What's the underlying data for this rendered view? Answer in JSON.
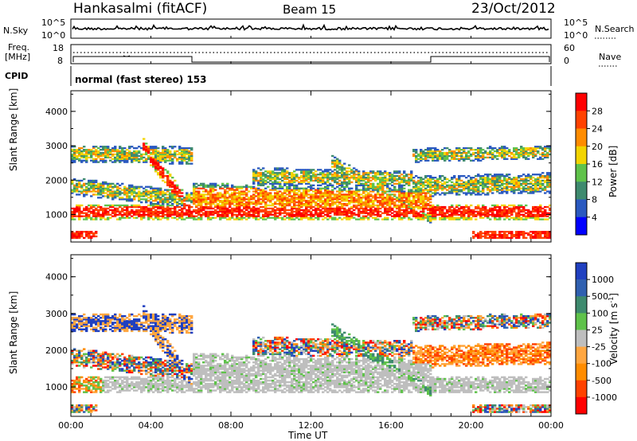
{
  "header": {
    "station": "Hankasalmi (fitACF)",
    "beam": "Beam 15",
    "date": "23/Oct/2012"
  },
  "panels": {
    "nsky_label": "N.Sky",
    "nsearch_label": "N.Search",
    "nsky_ticks": [
      "10^5",
      "10^0"
    ],
    "freq_label_1": "Freq.",
    "freq_label_2": "[MHz]",
    "freq_ticks": [
      "18",
      "8"
    ],
    "nave_label": "Nave",
    "nave_ticks": [
      "60",
      "0"
    ],
    "cpid_label": "CPID",
    "cpid_text": "normal (fast stereo) 153"
  },
  "chart_data": [
    {
      "type": "heatmap",
      "title": "",
      "xlabel": "Time UT",
      "ylabel": "Slant Range [km]",
      "x_ticks": [
        "00:00",
        "04:00",
        "08:00",
        "12:00",
        "16:00",
        "20:00",
        "00:00"
      ],
      "y_ticks": [
        "1000",
        "2000",
        "3000",
        "4000"
      ],
      "ylim": [
        200,
        4600
      ],
      "colorbar": {
        "label": "Power [dB]",
        "ticks": [
          "4",
          "8",
          "12",
          "16",
          "20",
          "24",
          "28"
        ],
        "colors": [
          "#0000ff",
          "#2a59c0",
          "#3e8a6e",
          "#5fc24a",
          "#f2d400",
          "#ff8c00",
          "#ff4200",
          "#ff0000"
        ]
      }
    },
    {
      "type": "heatmap",
      "title": "",
      "xlabel": "Time UT",
      "ylabel": "Slant Range [km]",
      "x_ticks": [
        "00:00",
        "04:00",
        "08:00",
        "12:00",
        "16:00",
        "20:00",
        "00:00"
      ],
      "y_ticks": [
        "1000",
        "2000",
        "3000",
        "4000"
      ],
      "ylim": [
        200,
        4600
      ],
      "colorbar": {
        "label_main": "Velocity [m s",
        "label_sup": "-1",
        "label_end": "]",
        "ticks": [
          "1000",
          "500",
          "100",
          "25",
          "-25",
          "-100",
          "-500",
          "-1000"
        ],
        "colors": [
          "#2040c0",
          "#3060b0",
          "#3e8a6e",
          "#5fc24a",
          "#bebebe",
          "#ffa640",
          "#ff8c00",
          "#ff4200",
          "#ff0000"
        ]
      }
    }
  ],
  "time_axis": {
    "label": "Time UT",
    "ticks": [
      "00:00",
      "04:00",
      "08:00",
      "12:00",
      "16:00",
      "20:00",
      "00:00"
    ]
  }
}
